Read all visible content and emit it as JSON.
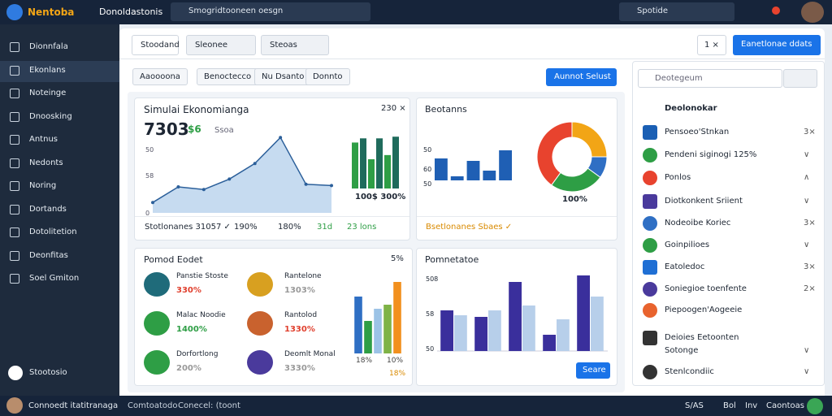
{
  "topbar": {
    "logo": "Nentoba",
    "app": "Donoldastonis",
    "search": "Smogridtooneen oesgn",
    "search2": "Spotide"
  },
  "sidebar": {
    "items": [
      "Dionnfala",
      "Ekonlans",
      "Noteinge",
      "Dnoosking",
      "Antnus",
      "Nedonts",
      "Noring",
      "Dortands",
      "Dotolitetion",
      "Deonfitas",
      "Soel Gmiton"
    ],
    "footer": "Stootosio"
  },
  "statusbar": {
    "user": "Connoedt itatitranaga",
    "left": [
      "Comtoatodo",
      "Conecel: (toont"
    ],
    "right": [
      "S/AS",
      "Bol",
      "Inv",
      "Caontoas"
    ]
  },
  "toolbar": {
    "tabs": [
      "Stoodand",
      "Sleonee",
      "Steoas"
    ],
    "counter": "1 ×",
    "action": "Eanetlonae ddats"
  },
  "filters": {
    "chips": [
      "Aaoooona",
      "Benoctecco",
      "Nu Dsanto",
      "Donnto"
    ],
    "button": "Aunnot Selust"
  },
  "cards": [
    {
      "title": "Simulai Ekonomianga",
      "kpi": "7303",
      "delta": "$6",
      "sub": "Ssoa",
      "corner": "230 ×",
      "axis": [
        "50",
        "58",
        "0"
      ],
      "caption": "100$ 300%",
      "footer": [
        "Stotlonanes 31057 ✓",
        "190%",
        "180%",
        "31d",
        "23 lons"
      ]
    },
    {
      "title": "Beotanns",
      "axis": [
        "50",
        "60",
        "50"
      ],
      "caption": "100%",
      "footer": [
        "Bsetlonanes Sbaes ✓"
      ]
    },
    {
      "title": "Pomod Eodet",
      "corner": "5%",
      "items": [
        {
          "name": "Panstie Stoste",
          "value": "330%"
        },
        {
          "name": "Rantelone",
          "value": "1303%"
        },
        {
          "name": "Malac Noodie",
          "value": "1400%"
        },
        {
          "name": "Rantolod",
          "value": "1330%"
        },
        {
          "name": "Dorfortlong",
          "value": "200%"
        },
        {
          "name": "Deomlt Monal",
          "value": "3330%"
        }
      ],
      "captions": [
        "18%",
        "10%",
        "18%"
      ]
    },
    {
      "title": "Pomnetatoe",
      "axis": [
        "508",
        "58",
        "50"
      ],
      "button": "Seare"
    }
  ],
  "rightpanel": {
    "search": "Deotegeum",
    "header": "Deolonokar",
    "items": [
      {
        "label": "Pensoeo'Stnkan",
        "tail": "3×"
      },
      {
        "label": "Pendeni siginogi 125%",
        "tail": "∨"
      },
      {
        "label": "Ponlos",
        "tail": "∧"
      },
      {
        "label": "Diotkonkent Sriient",
        "tail": "∨"
      },
      {
        "label": "Nodeoibe Koriec",
        "tail": "3×"
      },
      {
        "label": "Goinpilioes",
        "tail": "∨"
      },
      {
        "label": "Eatoledoc",
        "tail": "3×"
      },
      {
        "label": "Soniegioe toenfente",
        "tail": "2×"
      },
      {
        "label": "Piepoogen'Aogeeie"
      },
      {
        "label": "Deioies Eetoonten"
      },
      {
        "label": "Sotonge",
        "tail": "∨"
      },
      {
        "label": "Stenlcondiic",
        "tail": "∨"
      }
    ]
  },
  "chart_data": [
    {
      "type": "area",
      "values": [
        8,
        20,
        18,
        26,
        38,
        58,
        22,
        21
      ],
      "ylim": [
        0,
        70
      ],
      "color": "#2b5f9a"
    },
    {
      "type": "bar",
      "values": [
        55,
        60,
        35,
        60,
        40,
        62
      ],
      "ylim": [
        0,
        70
      ],
      "colors": [
        "#2e9e45",
        "#1f6b5c",
        "#2e9e45",
        "#1f6b5c",
        "#2e9e45",
        "#1f6b5c"
      ]
    },
    {
      "type": "bar",
      "values": [
        27,
        5,
        24,
        12,
        37
      ],
      "ylim": [
        0,
        42
      ],
      "colors": [
        "#1f5fb4",
        "#1f5fb4",
        "#1f5fb4",
        "#1f5fb4",
        "#1f5fb4"
      ]
    },
    {
      "type": "pie",
      "donut": true,
      "values": [
        25,
        10,
        25,
        40
      ],
      "colors": [
        "#f2a516",
        "#2f6fc4",
        "#2e9e45",
        "#e8432e"
      ]
    },
    {
      "type": "bar",
      "values": [
        70,
        40,
        55,
        60,
        88
      ],
      "ylim": [
        0,
        90
      ],
      "colors": [
        "#2f6fc4",
        "#2e9e45",
        "#9cc3e6",
        "#7fb347",
        "#f2901e"
      ]
    },
    {
      "type": "grouped",
      "ylim": [
        0,
        100
      ],
      "series": [
        {
          "color": "#3a2f9c",
          "values": [
            50,
            42,
            85,
            20,
            93
          ]
        },
        {
          "color": "#b7cfea",
          "values": [
            44,
            50,
            56,
            39,
            67
          ]
        }
      ]
    }
  ]
}
